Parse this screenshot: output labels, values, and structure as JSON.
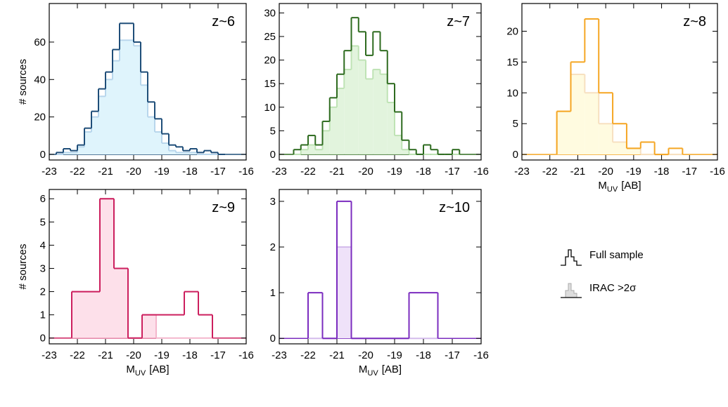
{
  "chart_data": [
    {
      "type": "histogram",
      "title": "z~6",
      "ylabel": "# sources",
      "bins": [
        -22.75,
        -22.5,
        -22.25,
        -22,
        -21.75,
        -21.5,
        -21.25,
        -21,
        -20.75,
        -20.5,
        -20.25,
        -20,
        -19.75,
        -19.5,
        -19.25,
        -19,
        -18.75,
        -18.5,
        -18.25,
        -18,
        -17.75,
        -17.5,
        -17.25,
        -17,
        -16.75
      ],
      "series": [
        {
          "color": "#1f4e79",
          "values": [
            1,
            3,
            2,
            5,
            14,
            23,
            35,
            44,
            56,
            70,
            70,
            60,
            44,
            28,
            19,
            11,
            5,
            4,
            2,
            3,
            1,
            2,
            1,
            0
          ]
        },
        {
          "color": "#dff4fc",
          "edgecolor": "#b8d6ec",
          "values": [
            0,
            1,
            1,
            4,
            12,
            20,
            31,
            40,
            50,
            61,
            61,
            58,
            37,
            20,
            12,
            6,
            2,
            1,
            1,
            1,
            0,
            0,
            0,
            0
          ]
        }
      ],
      "xlim": [
        -23,
        -16
      ],
      "xticks": [
        -23,
        -22,
        -21,
        -20,
        -19,
        -18,
        -17,
        -16
      ],
      "ylim": [
        -3,
        80.6
      ],
      "yticks": [
        0,
        20,
        40,
        60
      ]
    },
    {
      "type": "histogram",
      "title": "z~7",
      "bins": [
        -22.5,
        -22.25,
        -22,
        -21.75,
        -21.5,
        -21.25,
        -21,
        -20.75,
        -20.5,
        -20.25,
        -20,
        -19.75,
        -19.5,
        -19.25,
        -19,
        -18.75,
        -18.5,
        -18.25,
        -18,
        -17.75,
        -17.5,
        -17.25,
        -17,
        -16.75
      ],
      "series": [
        {
          "color": "#2e6b1f",
          "values": [
            1,
            2,
            4,
            2,
            7,
            12,
            17,
            22,
            29,
            26,
            21,
            26,
            22,
            15,
            9,
            3,
            1,
            0,
            2,
            1,
            0,
            0,
            1
          ]
        },
        {
          "color": "#e2f4dd",
          "edgecolor": "#bfe3b5",
          "values": [
            0,
            1,
            2,
            1,
            5,
            10,
            14,
            18,
            23,
            20,
            16,
            18,
            17,
            11,
            4,
            1,
            0,
            0,
            0,
            0,
            0,
            0,
            0
          ]
        }
      ],
      "xlim": [
        -23,
        -16
      ],
      "xticks": [
        -23,
        -22,
        -21,
        -20,
        -19,
        -18,
        -17,
        -16
      ],
      "ylim": [
        -1.2,
        32
      ],
      "yticks": [
        0,
        5,
        10,
        15,
        20,
        25,
        30
      ]
    },
    {
      "type": "histogram",
      "title": "z~8",
      "xlabel": "M",
      "xlabel_sub": "UV",
      "xlabel_rest": "[AB]",
      "bins": [
        -21.75,
        -21.25,
        -20.75,
        -20.25,
        -19.75,
        -19.25,
        -18.75,
        -18.25,
        -17.75,
        -17.25
      ],
      "series": [
        {
          "color": "#f5a623",
          "values": [
            7,
            15,
            22,
            10,
            5,
            1,
            2,
            0,
            1
          ]
        },
        {
          "color": "#fffbe0",
          "edgecolor": "#f7e0c0",
          "values": [
            7,
            13,
            10,
            5,
            2,
            1,
            0,
            0,
            0
          ]
        }
      ],
      "xlim": [
        -23,
        -16
      ],
      "xticks": [
        -23,
        -22,
        -21,
        -20,
        -19,
        -18,
        -17,
        -16
      ],
      "ylim": [
        -0.9,
        24.5
      ],
      "yticks": [
        0,
        5,
        10,
        15,
        20
      ]
    },
    {
      "type": "histogram",
      "title": "z~9",
      "ylabel": "# sources",
      "xlabel": "M",
      "xlabel_sub": "UV",
      "xlabel_rest": "[AB]",
      "bins": [
        -22.2,
        -21.7,
        -21.2,
        -20.7,
        -20.2,
        -19.7,
        -19.2,
        -18.7,
        -18.2,
        -17.7,
        -17.2
      ],
      "series": [
        {
          "color": "#cc1f5e",
          "values": [
            2,
            2,
            6,
            3,
            0,
            1,
            1,
            1,
            2,
            1
          ]
        },
        {
          "color": "#fde0ea",
          "edgecolor": "#f4b6cc",
          "values": [
            2,
            2,
            6,
            3,
            0,
            1,
            0,
            0,
            0,
            0
          ]
        }
      ],
      "xlim": [
        -23,
        -16
      ],
      "xticks": [
        -23,
        -22,
        -21,
        -20,
        -19,
        -18,
        -17,
        -16
      ],
      "ylim": [
        -0.25,
        6.4
      ],
      "yticks": [
        0,
        1,
        2,
        3,
        4,
        5,
        6
      ]
    },
    {
      "type": "histogram",
      "title": "z~10",
      "xlabel": "M",
      "xlabel_sub": "UV",
      "xlabel_rest": "[AB]",
      "bins": [
        -22,
        -21.5,
        -21,
        -20.5,
        -20,
        -19.5,
        -19,
        -18.5,
        -18,
        -17.5
      ],
      "series": [
        {
          "color": "#7b2cbf",
          "values": [
            1,
            0,
            3,
            0,
            0,
            0,
            0,
            1,
            1
          ]
        },
        {
          "color": "#efe2f9",
          "edgecolor": "#d4bcec",
          "values": [
            0,
            0,
            2,
            0,
            0,
            0,
            0,
            0,
            0
          ]
        }
      ],
      "xlim": [
        -23,
        -16
      ],
      "xticks": [
        -23,
        -22,
        -21,
        -20,
        -19,
        -18,
        -17,
        -16
      ],
      "ylim": [
        -0.12,
        3.26
      ],
      "yticks": [
        0,
        1,
        2,
        3
      ]
    }
  ],
  "legend": {
    "items": [
      "Full sample",
      "IRAC >2σ"
    ]
  }
}
